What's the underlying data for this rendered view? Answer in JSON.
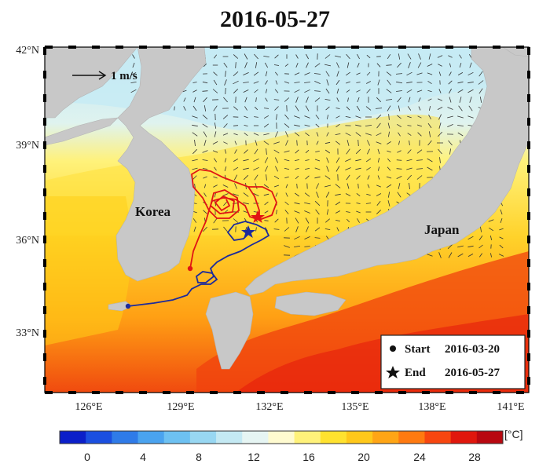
{
  "title": "2016-05-27",
  "scale_label": "1 m/s",
  "places": {
    "korea": "Korea",
    "japan": "Japan"
  },
  "lat_labels": [
    "42°N",
    "39°N",
    "36°N",
    "33°N"
  ],
  "lon_labels": [
    "126°E",
    "129°E",
    "132°E",
    "135°E",
    "138°E",
    "141°E"
  ],
  "legend": {
    "start_label": "Start",
    "start_date": "2016-03-20",
    "end_label": "End",
    "end_date": "2016-05-27"
  },
  "colorbar": {
    "unit": "[°C]",
    "ticks": [
      "0",
      "4",
      "8",
      "12",
      "16",
      "20",
      "24",
      "28"
    ],
    "colors": [
      "#0b1fc9",
      "#1b4fe0",
      "#2f7be8",
      "#4aa3ef",
      "#6dc1f2",
      "#98d7f2",
      "#c4e9f3",
      "#e6f5f3",
      "#fffbd0",
      "#fff27a",
      "#ffe22f",
      "#ffc81a",
      "#ffa515",
      "#ff7a10",
      "#f7460f",
      "#e0170d",
      "#b80810"
    ]
  },
  "colors": {
    "land": "#c8c8c8",
    "red_track": "#e01414",
    "blue_track": "#1c2a9c"
  }
}
